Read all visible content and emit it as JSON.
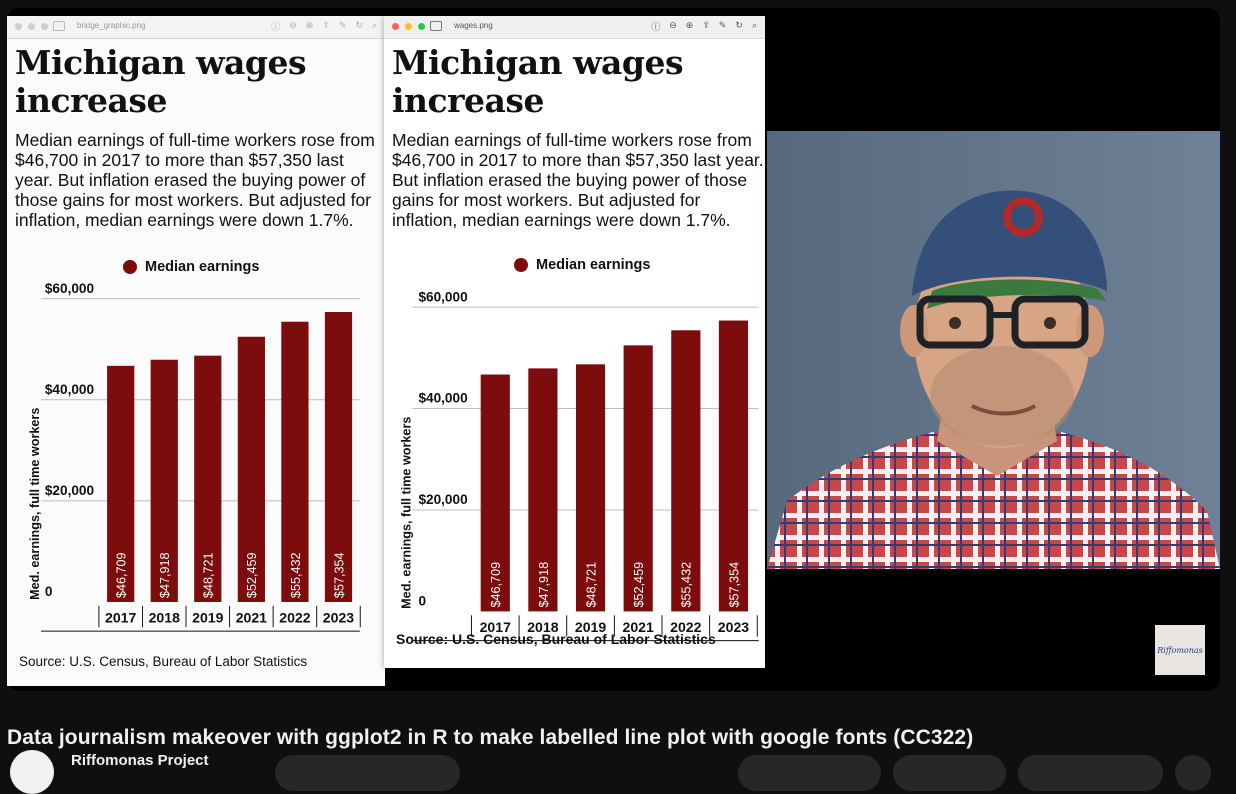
{
  "left_window": {
    "filename": "bridge_graphic.png",
    "title": "Michigan wages increase",
    "subtitle": "Median earnings of full-time workers rose from $46,700 in 2017 to more than $57,350 last year. But inflation erased the buying power of those gains for most workers. But adjusted for inflation, median earnings were down 1.7%.",
    "legend": "Median earnings",
    "source": "Source: U.S. Census, Bureau of Labor Statistics"
  },
  "right_window": {
    "filename": "wages.png",
    "title": "Michigan wages increase",
    "subtitle": "Median earnings of full-time workers rose from $46,700 in 2017 to more than $57,350 last year. But inflation erased the buying power of those gains for most workers. But adjusted for inflation, median earnings were down 1.7%.",
    "legend": "Median earnings",
    "source": "Source: U.S. Census, Bureau of Labor Statistics"
  },
  "video": {
    "title": "Data journalism makeover with ggplot2 in R to make labelled line plot with google fonts (CC322)",
    "channel": "Riffomonas Project",
    "brand": "Riffomonas"
  },
  "icons": [
    "sidebar-toggle-icon",
    "info-icon",
    "zoom-out-icon",
    "zoom-in-icon",
    "share-icon",
    "markup-icon",
    "rotate-icon",
    "search-icon"
  ],
  "colors": {
    "bar": "#7d0c0c",
    "legend_dot": "#7d0c0c"
  },
  "chart_data": [
    {
      "type": "bar",
      "categories": [
        "2017",
        "2018",
        "2019",
        "2021",
        "2022",
        "2023"
      ],
      "values": [
        46709,
        47918,
        48721,
        52459,
        55432,
        57354
      ],
      "value_labels": [
        "$46,709",
        "$47,918",
        "$48,721",
        "$52,459",
        "$55,432",
        "$57,354"
      ],
      "yticks": [
        "0",
        "$20,000",
        "$40,000",
        "$60,000"
      ],
      "ylabel": "Med. earnings, full time workers",
      "legend": "Median earnings",
      "ylim": [
        0,
        60000
      ]
    },
    {
      "type": "bar",
      "categories": [
        "2017",
        "2018",
        "2019",
        "2021",
        "2022",
        "2023"
      ],
      "values": [
        46709,
        47918,
        48721,
        52459,
        55432,
        57354
      ],
      "value_labels": [
        "$46,709",
        "$47,918",
        "$48,721",
        "$52,459",
        "$55,432",
        "$57,354"
      ],
      "yticks": [
        "0",
        "$20,000",
        "$40,000",
        "$60,000"
      ],
      "ylabel": "Med. earnings, full time workers",
      "legend": "Median earnings",
      "ylim": [
        0,
        60000
      ]
    }
  ]
}
